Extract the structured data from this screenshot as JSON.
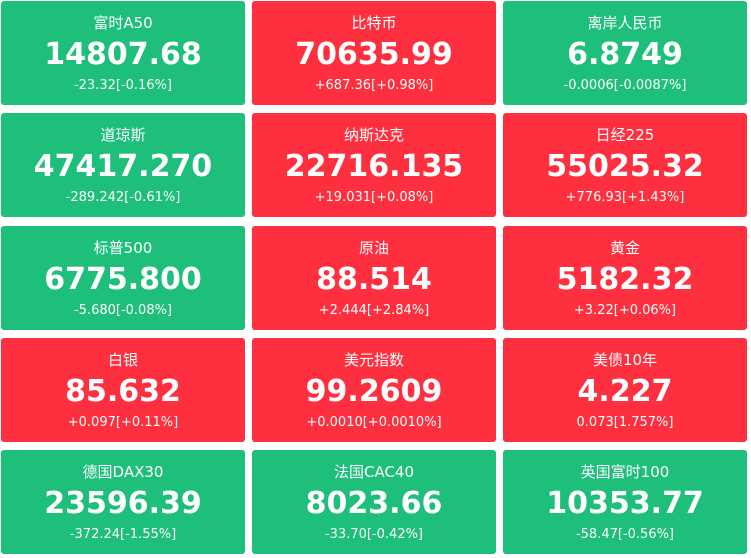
{
  "tiles": [
    {
      "name": "富时A50",
      "price": "14807.68",
      "change": "-23.32[-0.16%]",
      "color": "#1dbf7b"
    },
    {
      "name": "比特币",
      "price": "70635.99",
      "change": "+687.36[+0.98%]",
      "color": "#fe2f3e"
    },
    {
      "name": "离岸人民币",
      "price": "6.8749",
      "change": "-0.0006[-0.0087%]",
      "color": "#1dbf7b"
    },
    {
      "name": "道琼斯",
      "price": "47417.270",
      "change": "-289.242[-0.61%]",
      "color": "#1dbf7b"
    },
    {
      "name": "纳斯达克",
      "price": "22716.135",
      "change": "+19.031[+0.08%]",
      "color": "#fe2f3e"
    },
    {
      "name": "日经225",
      "price": "55025.32",
      "change": "+776.93[+1.43%]",
      "color": "#fe2f3e"
    },
    {
      "name": "标普500",
      "price": "6775.800",
      "change": "-5.680[-0.08%]",
      "color": "#1dbf7b"
    },
    {
      "name": "原油",
      "price": "88.514",
      "change": "+2.444[+2.84%]",
      "color": "#fe2f3e"
    },
    {
      "name": "黄金",
      "price": "5182.32",
      "change": "+3.22[+0.06%]",
      "color": "#fe2f3e"
    },
    {
      "name": "白银",
      "price": "85.632",
      "change": "+0.097[+0.11%]",
      "color": "#fe2f3e"
    },
    {
      "name": "美元指数",
      "price": "99.2609",
      "change": "+0.0010[+0.0010%]",
      "color": "#fe2f3e"
    },
    {
      "name": "美债10年",
      "price": "4.227",
      "change": "0.073[1.757%]",
      "color": "#fe2f3e"
    },
    {
      "name": "德国DAX30",
      "price": "23596.39",
      "change": "-372.24[-1.55%]",
      "color": "#1dbf7b"
    },
    {
      "name": "法国CAC40",
      "price": "8023.66",
      "change": "-33.70[-0.42%]",
      "color": "#1dbf7b"
    },
    {
      "name": "英国富时100",
      "price": "10353.77",
      "change": "-58.47[-0.56%]",
      "color": "#1dbf7b"
    }
  ]
}
